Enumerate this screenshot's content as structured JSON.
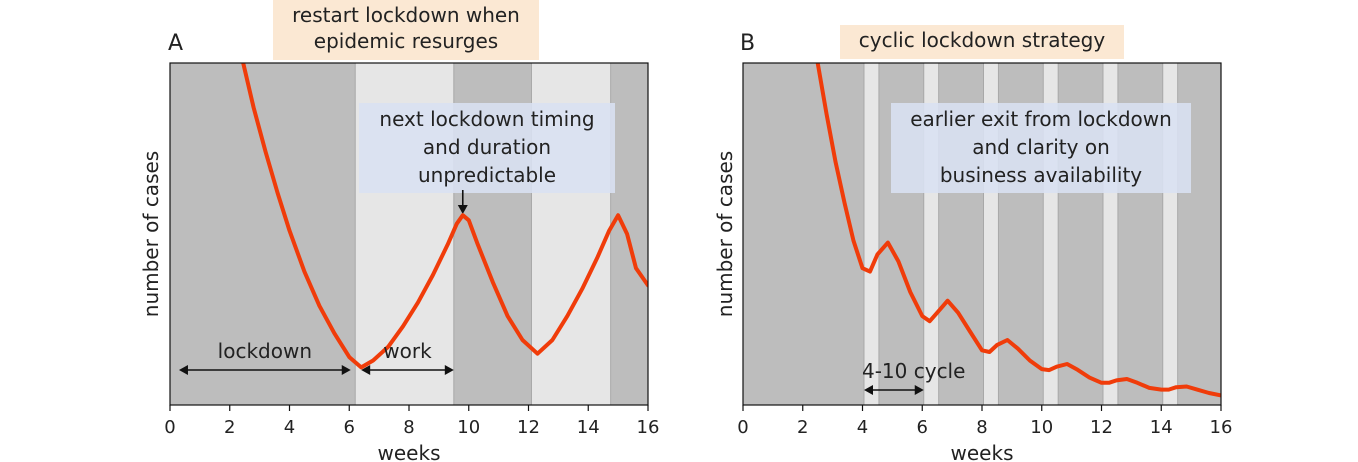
{
  "colors": {
    "lockdown": "#bdbdbd",
    "work": "#e6e6e6",
    "curve": "#f03c0a",
    "title_box": "#fbe8d3",
    "annotation_box": "#d9e1f2"
  },
  "chart_data": [
    {
      "type": "line",
      "panel": "A",
      "title": "restart lockdown when\nepidemic resurges",
      "xlabel": "weeks",
      "ylabel": "number of cases",
      "xlim": [
        0,
        16
      ],
      "ylim": [
        0,
        1
      ],
      "xticks": [
        0,
        2,
        4,
        6,
        8,
        10,
        12,
        14,
        16
      ],
      "grid": false,
      "regions": [
        {
          "start": 0,
          "end": 6.2,
          "state": "lockdown"
        },
        {
          "start": 6.2,
          "end": 9.5,
          "state": "work"
        },
        {
          "start": 9.5,
          "end": 12.1,
          "state": "lockdown"
        },
        {
          "start": 12.1,
          "end": 14.75,
          "state": "work"
        },
        {
          "start": 14.75,
          "end": 16,
          "state": "lockdown"
        }
      ],
      "series": [
        {
          "x": [
            2.45,
            2.8,
            3.2,
            3.6,
            4.0,
            4.5,
            5.0,
            5.5,
            6.0,
            6.4,
            6.8,
            7.3,
            7.8,
            8.3,
            8.8,
            9.3,
            9.6,
            9.8,
            10.0,
            10.3,
            10.8,
            11.3,
            11.8,
            12.3,
            12.8,
            13.3,
            13.8,
            14.3,
            14.7,
            15.0,
            15.3,
            15.6,
            16.0
          ],
          "y": [
            1.0,
            0.87,
            0.74,
            0.62,
            0.51,
            0.39,
            0.29,
            0.21,
            0.14,
            0.11,
            0.13,
            0.17,
            0.23,
            0.3,
            0.38,
            0.47,
            0.53,
            0.555,
            0.54,
            0.47,
            0.36,
            0.26,
            0.19,
            0.15,
            0.19,
            0.26,
            0.34,
            0.43,
            0.51,
            0.555,
            0.5,
            0.4,
            0.35
          ]
        }
      ],
      "annotations": [
        {
          "id": "lockdown",
          "text": "lockdown",
          "x_from": 0.3,
          "x_to": 6.05
        },
        {
          "id": "work",
          "text": "work",
          "x_from": 6.4,
          "x_to": 9.5
        },
        {
          "id": "peak",
          "text": "next lockdown timing\nand duration\nunpredictable",
          "arrow_x": 9.8
        }
      ]
    },
    {
      "type": "line",
      "panel": "B",
      "title": "cyclic lockdown strategy",
      "xlabel": "weeks",
      "ylabel": "number of cases",
      "xlim": [
        0,
        16
      ],
      "ylim": [
        0,
        1
      ],
      "xticks": [
        0,
        2,
        4,
        6,
        8,
        10,
        12,
        14,
        16
      ],
      "grid": false,
      "regions": [
        {
          "start": 0,
          "end": 4.05,
          "state": "lockdown"
        },
        {
          "start": 4.05,
          "end": 4.55,
          "state": "work"
        },
        {
          "start": 4.55,
          "end": 6.05,
          "state": "lockdown"
        },
        {
          "start": 6.05,
          "end": 6.55,
          "state": "work"
        },
        {
          "start": 6.55,
          "end": 8.05,
          "state": "lockdown"
        },
        {
          "start": 8.05,
          "end": 8.55,
          "state": "work"
        },
        {
          "start": 8.55,
          "end": 10.05,
          "state": "lockdown"
        },
        {
          "start": 10.05,
          "end": 10.55,
          "state": "work"
        },
        {
          "start": 10.55,
          "end": 12.05,
          "state": "lockdown"
        },
        {
          "start": 12.05,
          "end": 12.55,
          "state": "work"
        },
        {
          "start": 12.55,
          "end": 14.05,
          "state": "lockdown"
        },
        {
          "start": 14.05,
          "end": 14.55,
          "state": "work"
        },
        {
          "start": 14.55,
          "end": 16,
          "state": "lockdown"
        }
      ],
      "series": [
        {
          "x": [
            2.5,
            2.8,
            3.1,
            3.4,
            3.7,
            4.0,
            4.25,
            4.5,
            4.85,
            5.2,
            5.6,
            6.0,
            6.25,
            6.5,
            6.85,
            7.2,
            7.6,
            8.0,
            8.25,
            8.5,
            8.85,
            9.2,
            9.6,
            10.0,
            10.25,
            10.5,
            10.85,
            11.2,
            11.6,
            12.0,
            12.25,
            12.5,
            12.85,
            13.2,
            13.6,
            14.0,
            14.25,
            14.5,
            14.85,
            15.2,
            15.6,
            16.0
          ],
          "y": [
            1.0,
            0.85,
            0.71,
            0.59,
            0.48,
            0.4,
            0.39,
            0.44,
            0.475,
            0.42,
            0.33,
            0.26,
            0.245,
            0.27,
            0.305,
            0.27,
            0.215,
            0.16,
            0.155,
            0.175,
            0.19,
            0.165,
            0.13,
            0.105,
            0.102,
            0.112,
            0.12,
            0.103,
            0.08,
            0.065,
            0.065,
            0.072,
            0.076,
            0.065,
            0.05,
            0.045,
            0.045,
            0.052,
            0.054,
            0.045,
            0.035,
            0.028
          ]
        }
      ],
      "annotations": [
        {
          "id": "cycle",
          "text": "4-10 cycle",
          "x_from": 4.05,
          "x_to": 6.05
        },
        {
          "id": "exit",
          "text": "earlier exit from lockdown\nand clarity on\nbusiness availability"
        }
      ]
    }
  ]
}
